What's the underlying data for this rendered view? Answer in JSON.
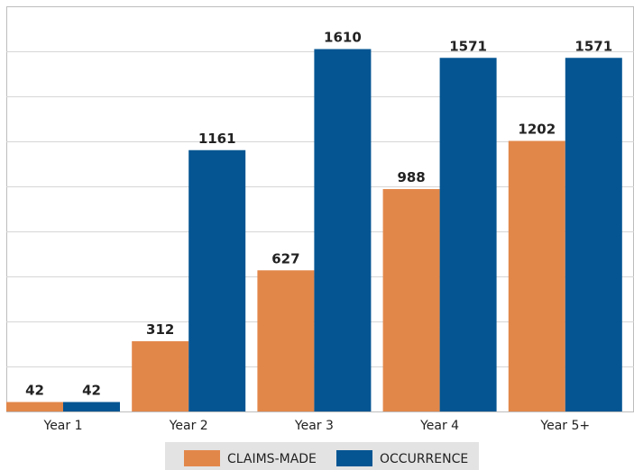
{
  "chart_data": {
    "type": "bar",
    "categories": [
      "Year 1",
      "Year 2",
      "Year 3",
      "Year 4",
      "Year 5+"
    ],
    "series": [
      {
        "name": "CLAIMS-MADE",
        "color": "#e2874a",
        "values": [
          42,
          312,
          627,
          988,
          1202
        ]
      },
      {
        "name": "OCCURRENCE",
        "color": "#045592",
        "values": [
          42,
          1161,
          1610,
          1571,
          1571
        ]
      }
    ],
    "ylim": [
      0,
      1800
    ],
    "grid": true,
    "legend_position": "bottom-center",
    "title": "",
    "xlabel": "",
    "ylabel": ""
  }
}
